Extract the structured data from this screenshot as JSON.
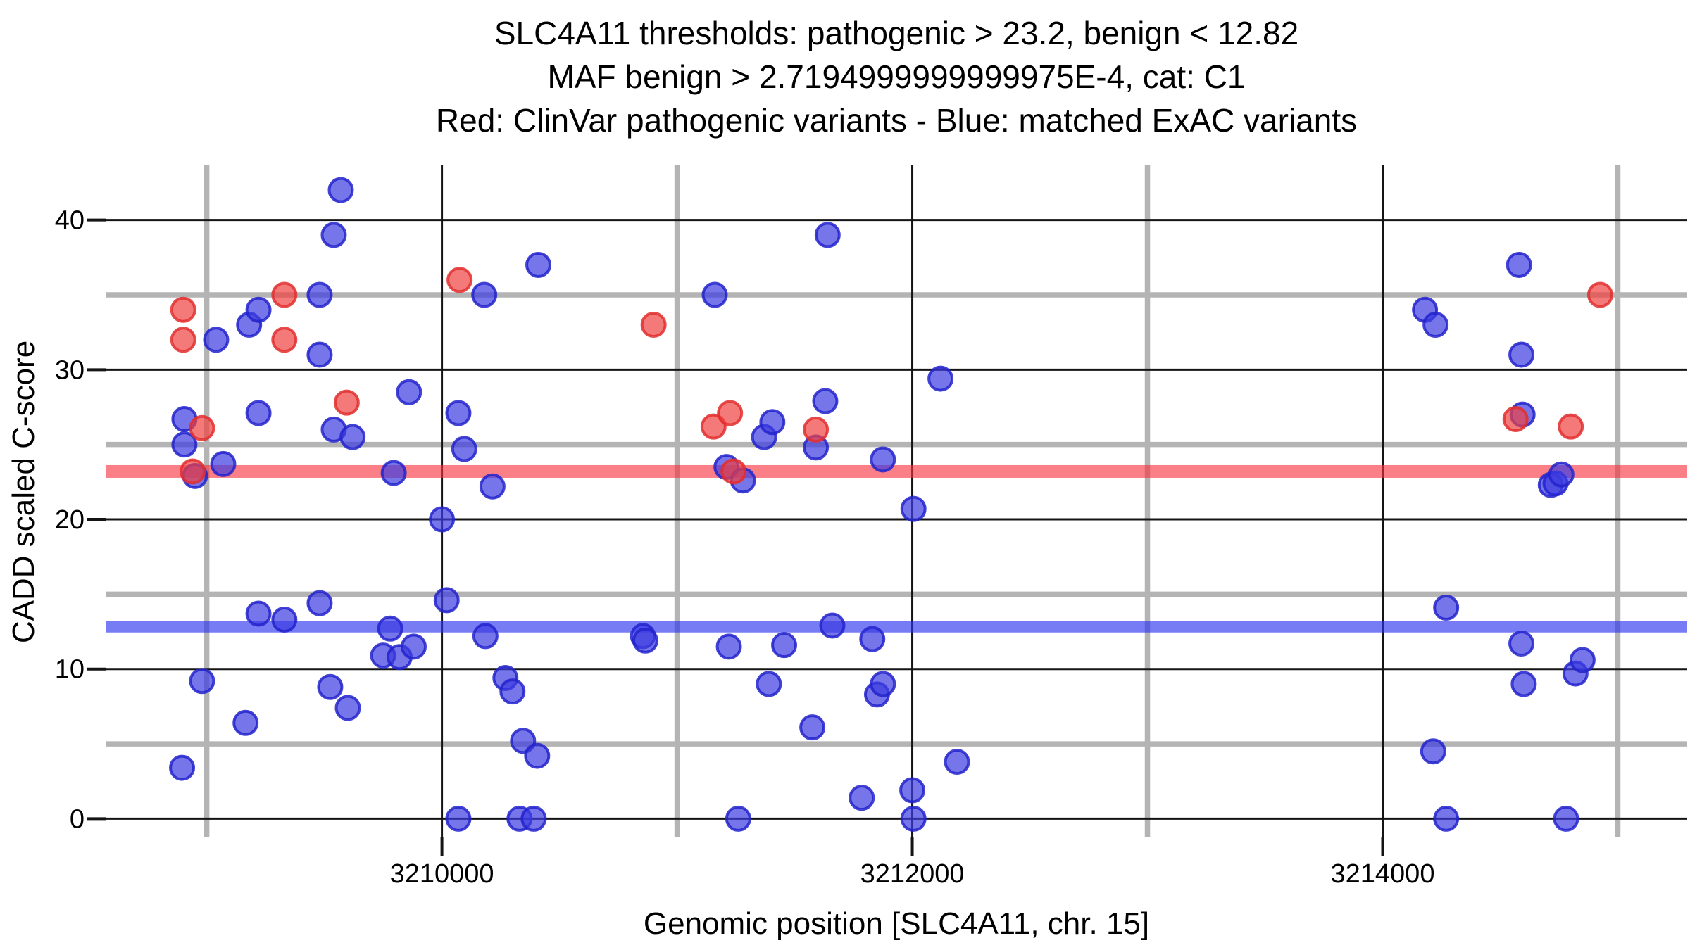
{
  "chart_data": {
    "type": "scatter",
    "title_lines": [
      "SLC4A11 thresholds: pathogenic > 23.2, benign < 12.82",
      "MAF benign > 2.7194999999999975E-4, cat: C1",
      "Red: ClinVar pathogenic variants - Blue: matched ExAC variants"
    ],
    "xlabel": "Genomic position [SLC4A11, chr. 15]",
    "ylabel": "CADD scaled C-score",
    "background": "#ffffff",
    "grid": {
      "minor_color": "#b4b4b4",
      "major_color": "#141414",
      "tick_color": "#141414"
    },
    "x_axis": {
      "domain": [
        3208570,
        3215295
      ],
      "major_ticks": [
        {
          "value": 3210000,
          "label": "3210000"
        },
        {
          "value": 3212000,
          "label": "3212000"
        },
        {
          "value": 3214000,
          "label": "3214000"
        }
      ],
      "minor_gridlines": [
        3209000,
        3211000,
        3213000,
        3215000
      ]
    },
    "y_axis": {
      "domain": [
        -1.25,
        43.65
      ],
      "major_ticks": [
        {
          "value": 0,
          "label": "0"
        },
        {
          "value": 10,
          "label": "10"
        },
        {
          "value": 20,
          "label": "20"
        },
        {
          "value": 30,
          "label": "30"
        },
        {
          "value": 40,
          "label": "40"
        }
      ],
      "minor_gridlines": [
        5,
        15,
        25,
        35
      ]
    },
    "thresholds": [
      {
        "name": "pathogenic",
        "value": 23.2,
        "color": "#f8303e",
        "opacity": 0.62,
        "thickness": 18
      },
      {
        "name": "benign",
        "value": 12.82,
        "color": "#2a30ee",
        "opacity": 0.64,
        "thickness": 16
      }
    ],
    "series": [
      {
        "name": "matched ExAC variants",
        "fill": "#3c3ce1",
        "fill_opacity": 0.7,
        "stroke": "#2323cd",
        "stroke_opacity": 0.85,
        "points": [
          [
            3208895,
            3.4
          ],
          [
            3208905,
            25.0
          ],
          [
            3208905,
            26.7
          ],
          [
            3208950,
            22.9
          ],
          [
            3208980,
            9.2
          ],
          [
            3209040,
            32.0
          ],
          [
            3209070,
            23.7
          ],
          [
            3209165,
            6.4
          ],
          [
            3209180,
            33.0
          ],
          [
            3209220,
            34.0
          ],
          [
            3209220,
            27.1
          ],
          [
            3209220,
            13.7
          ],
          [
            3209330,
            13.3
          ],
          [
            3209480,
            35.0
          ],
          [
            3209480,
            31.0
          ],
          [
            3209480,
            14.4
          ],
          [
            3209525,
            8.8
          ],
          [
            3209540,
            39.0
          ],
          [
            3209540,
            26.0
          ],
          [
            3209570,
            42.0
          ],
          [
            3209600,
            7.4
          ],
          [
            3209620,
            25.5
          ],
          [
            3209750,
            10.9
          ],
          [
            3209780,
            12.7
          ],
          [
            3209795,
            23.1
          ],
          [
            3209820,
            10.8
          ],
          [
            3209860,
            28.5
          ],
          [
            3209880,
            11.5
          ],
          [
            3210000,
            20.0
          ],
          [
            3210020,
            14.6
          ],
          [
            3210070,
            27.1
          ],
          [
            3210070,
            0.0
          ],
          [
            3210095,
            24.7
          ],
          [
            3210180,
            35.0
          ],
          [
            3210185,
            12.2
          ],
          [
            3210215,
            22.2
          ],
          [
            3210270,
            9.4
          ],
          [
            3210300,
            8.5
          ],
          [
            3210330,
            0.0
          ],
          [
            3210345,
            5.2
          ],
          [
            3210390,
            0.0
          ],
          [
            3210405,
            4.2
          ],
          [
            3210410,
            37.0
          ],
          [
            3210855,
            12.2
          ],
          [
            3210865,
            11.9
          ],
          [
            3211160,
            35.0
          ],
          [
            3211210,
            23.5
          ],
          [
            3211220,
            11.5
          ],
          [
            3211260,
            0.0
          ],
          [
            3211280,
            22.6
          ],
          [
            3211370,
            25.5
          ],
          [
            3211390,
            9.0
          ],
          [
            3211405,
            26.5
          ],
          [
            3211455,
            11.6
          ],
          [
            3211575,
            6.1
          ],
          [
            3211590,
            24.8
          ],
          [
            3211630,
            27.9
          ],
          [
            3211640,
            39.0
          ],
          [
            3211660,
            12.9
          ],
          [
            3211785,
            1.4
          ],
          [
            3211830,
            12.0
          ],
          [
            3211850,
            8.3
          ],
          [
            3211875,
            24.0
          ],
          [
            3211875,
            9.0
          ],
          [
            3212000,
            1.9
          ],
          [
            3212005,
            20.7
          ],
          [
            3212005,
            0.0
          ],
          [
            3212120,
            29.4
          ],
          [
            3212190,
            3.8
          ],
          [
            3214180,
            34.0
          ],
          [
            3214215,
            4.5
          ],
          [
            3214225,
            33.0
          ],
          [
            3214270,
            14.1
          ],
          [
            3214270,
            0.0
          ],
          [
            3214580,
            37.0
          ],
          [
            3214590,
            31.0
          ],
          [
            3214590,
            11.7
          ],
          [
            3214595,
            27.0
          ],
          [
            3214600,
            9.0
          ],
          [
            3214715,
            22.3
          ],
          [
            3214735,
            22.4
          ],
          [
            3214760,
            23.0
          ],
          [
            3214780,
            0.0
          ],
          [
            3214820,
            9.7
          ],
          [
            3214850,
            10.6
          ]
        ]
      },
      {
        "name": "ClinVar pathogenic variants",
        "fill": "#f04040",
        "fill_opacity": 0.7,
        "stroke": "#e22e2e",
        "stroke_opacity": 0.85,
        "points": [
          [
            3208900,
            34.0
          ],
          [
            3208900,
            32.0
          ],
          [
            3208940,
            23.2
          ],
          [
            3208980,
            26.1
          ],
          [
            3209330,
            35.0
          ],
          [
            3209330,
            32.0
          ],
          [
            3209595,
            27.8
          ],
          [
            3210075,
            36.0
          ],
          [
            3210900,
            33.0
          ],
          [
            3211155,
            26.2
          ],
          [
            3211225,
            27.1
          ],
          [
            3211240,
            23.2
          ],
          [
            3211590,
            26.0
          ],
          [
            3214565,
            26.7
          ],
          [
            3214800,
            26.2
          ],
          [
            3214925,
            35.0
          ]
        ]
      }
    ]
  }
}
